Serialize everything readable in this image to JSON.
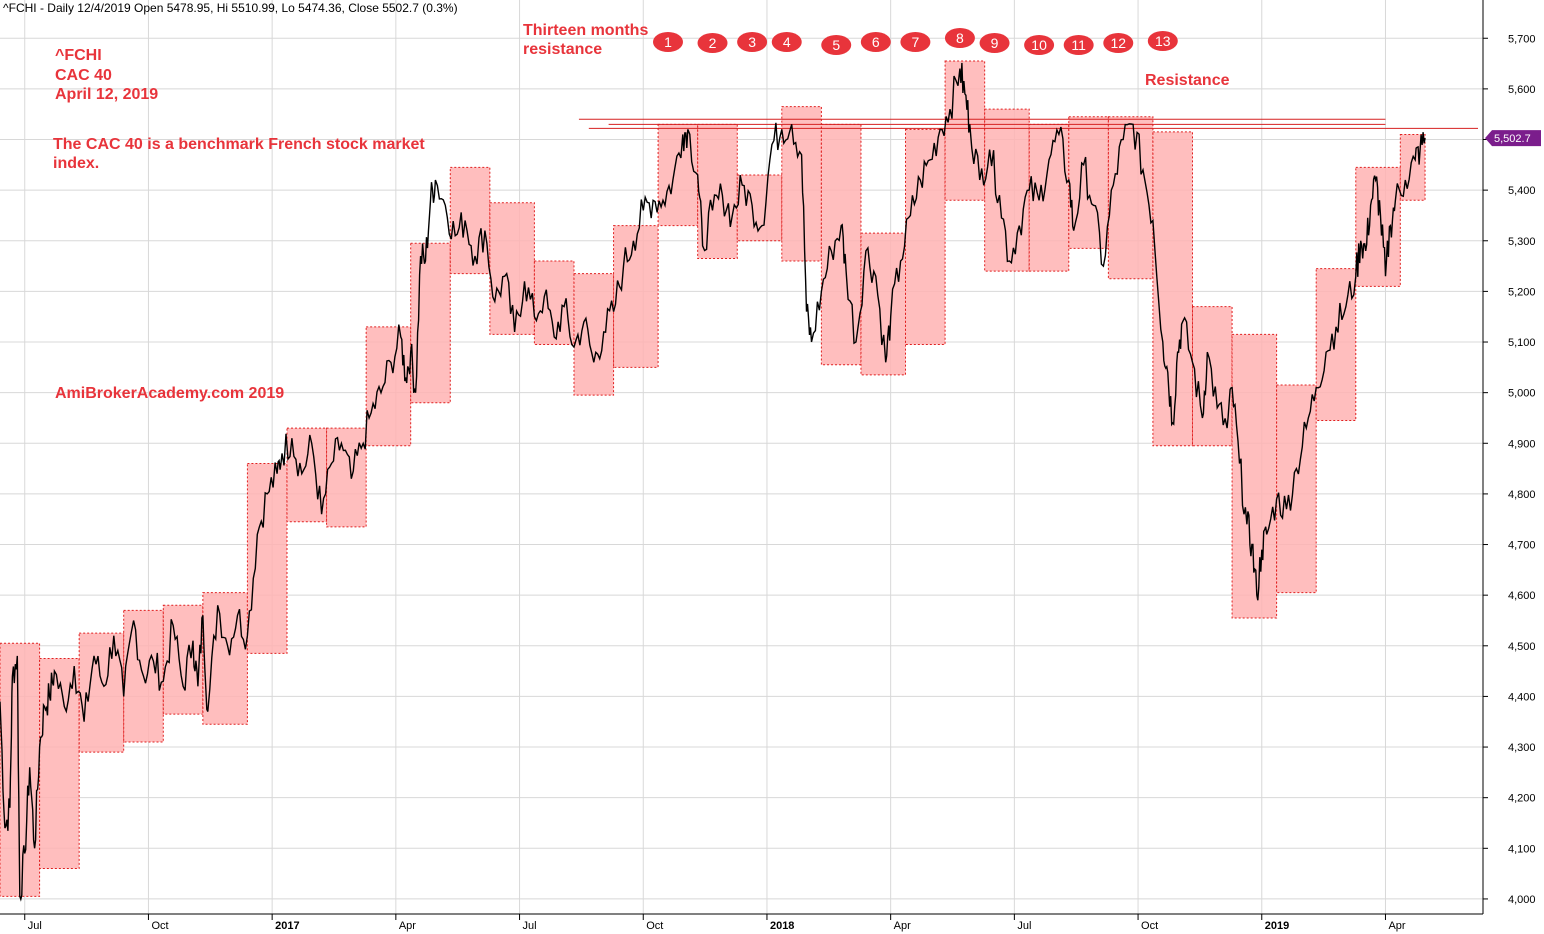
{
  "header": {
    "title_line": "^FCHI - Daily 12/4/2019 Open 5478.95, Hi 5510.99, Lo 5474.36, Close 5502.7 (0.3%)"
  },
  "annotations": {
    "symbol": "^FCHI",
    "index_name": "CAC 40",
    "date": "April 12, 2019",
    "description_line1": "The CAC 40  is a benchmark French stock market",
    "description_line2": "index.",
    "watermark": "AmiBrokerAcademy.com  2019",
    "months_label_line1": "Thirteen months",
    "months_label_line2": "resistance",
    "resistance_label": "Resistance"
  },
  "last_price_label": "5,502.7",
  "colors": {
    "accent_red": "#e8343b",
    "box_fill": "#ffb3b3",
    "box_border": "#e02020",
    "price_line": "#000000",
    "last_label_bg": "#7b1d8c",
    "grid": "#d8d8d8"
  },
  "chart_data": {
    "type": "line",
    "title": "^FCHI - Daily 12/4/2019 Open 5478.95, Hi 5510.99, Lo 5474.36, Close 5502.7 (0.3%)",
    "ylim": [
      3990,
      5740
    ],
    "yticks": [
      "4,000",
      "4,100",
      "4,200",
      "4,300",
      "4,400",
      "4,500",
      "4,600",
      "4,700",
      "4,800",
      "4,900",
      "5,000",
      "5,100",
      "5,200",
      "5,300",
      "5,400",
      "5,500",
      "5,600",
      "5,700"
    ],
    "ytick_values": [
      4000,
      4100,
      4200,
      4300,
      4400,
      4500,
      4600,
      4700,
      4800,
      4900,
      5000,
      5100,
      5200,
      5300,
      5400,
      5500,
      5600,
      5700
    ],
    "xlim": [
      2016.45,
      2019.33
    ],
    "xticks": [
      {
        "label": "Jul",
        "t": 2016.5,
        "bold": false
      },
      {
        "label": "Oct",
        "t": 2016.75,
        "bold": false
      },
      {
        "label": "2017",
        "t": 2017.0,
        "bold": true
      },
      {
        "label": "Apr",
        "t": 2017.25,
        "bold": false
      },
      {
        "label": "Jul",
        "t": 2017.5,
        "bold": false
      },
      {
        "label": "Oct",
        "t": 2017.75,
        "bold": false
      },
      {
        "label": "2018",
        "t": 2018.0,
        "bold": true
      },
      {
        "label": "Apr",
        "t": 2018.25,
        "bold": false
      },
      {
        "label": "Jul",
        "t": 2018.5,
        "bold": false
      },
      {
        "label": "Oct",
        "t": 2018.75,
        "bold": false
      },
      {
        "label": "2019",
        "t": 2019.0,
        "bold": true
      },
      {
        "label": "Apr",
        "t": 2019.25,
        "bold": false
      }
    ],
    "monthly_boxes": [
      {
        "t0": 2016.45,
        "t1": 2016.53,
        "low": 4005,
        "high": 4505
      },
      {
        "t0": 2016.53,
        "t1": 2016.61,
        "low": 4060,
        "high": 4475
      },
      {
        "t0": 2016.61,
        "t1": 2016.7,
        "low": 4290,
        "high": 4525
      },
      {
        "t0": 2016.7,
        "t1": 2016.78,
        "low": 4310,
        "high": 4570
      },
      {
        "t0": 2016.78,
        "t1": 2016.86,
        "low": 4365,
        "high": 4580
      },
      {
        "t0": 2016.86,
        "t1": 2016.95,
        "low": 4345,
        "high": 4605
      },
      {
        "t0": 2016.95,
        "t1": 2017.03,
        "low": 4485,
        "high": 4860
      },
      {
        "t0": 2017.03,
        "t1": 2017.11,
        "low": 4745,
        "high": 4930
      },
      {
        "t0": 2017.11,
        "t1": 2017.19,
        "low": 4735,
        "high": 4930
      },
      {
        "t0": 2017.19,
        "t1": 2017.28,
        "low": 4895,
        "high": 5130
      },
      {
        "t0": 2017.28,
        "t1": 2017.36,
        "low": 4980,
        "high": 5295
      },
      {
        "t0": 2017.36,
        "t1": 2017.44,
        "low": 5235,
        "high": 5445
      },
      {
        "t0": 2017.44,
        "t1": 2017.53,
        "low": 5115,
        "high": 5375
      },
      {
        "t0": 2017.53,
        "t1": 2017.61,
        "low": 5095,
        "high": 5260
      },
      {
        "t0": 2017.61,
        "t1": 2017.69,
        "low": 4995,
        "high": 5235
      },
      {
        "t0": 2017.69,
        "t1": 2017.78,
        "low": 5050,
        "high": 5330
      },
      {
        "t0": 2017.78,
        "t1": 2017.86,
        "low": 5330,
        "high": 5530
      },
      {
        "t0": 2017.86,
        "t1": 2017.94,
        "low": 5265,
        "high": 5530
      },
      {
        "t0": 2017.94,
        "t1": 2018.03,
        "low": 5300,
        "high": 5430
      },
      {
        "t0": 2018.03,
        "t1": 2018.11,
        "low": 5260,
        "high": 5565
      },
      {
        "t0": 2018.11,
        "t1": 2018.19,
        "low": 5055,
        "high": 5530
      },
      {
        "t0": 2018.19,
        "t1": 2018.28,
        "low": 5035,
        "high": 5315
      },
      {
        "t0": 2018.28,
        "t1": 2018.36,
        "low": 5095,
        "high": 5520
      },
      {
        "t0": 2018.36,
        "t1": 2018.44,
        "low": 5380,
        "high": 5655
      },
      {
        "t0": 2018.44,
        "t1": 2018.53,
        "low": 5240,
        "high": 5560
      },
      {
        "t0": 2018.53,
        "t1": 2018.61,
        "low": 5240,
        "high": 5530
      },
      {
        "t0": 2018.61,
        "t1": 2018.69,
        "low": 5285,
        "high": 5545
      },
      {
        "t0": 2018.69,
        "t1": 2018.78,
        "low": 5225,
        "high": 5545
      },
      {
        "t0": 2018.78,
        "t1": 2018.86,
        "low": 4895,
        "high": 5515
      },
      {
        "t0": 2018.86,
        "t1": 2018.94,
        "low": 4895,
        "high": 5170
      },
      {
        "t0": 2018.94,
        "t1": 2019.03,
        "low": 4555,
        "high": 5115
      },
      {
        "t0": 2019.03,
        "t1": 2019.11,
        "low": 4605,
        "high": 5015
      },
      {
        "t0": 2019.11,
        "t1": 2019.19,
        "low": 4945,
        "high": 5245
      },
      {
        "t0": 2019.19,
        "t1": 2019.28,
        "low": 5210,
        "high": 5445
      },
      {
        "t0": 2019.28,
        "t1": 2019.33,
        "low": 5380,
        "high": 5510
      }
    ],
    "price_path": [
      [
        2016.45,
        4390
      ],
      [
        2016.46,
        4140
      ],
      [
        2016.47,
        4180
      ],
      [
        2016.475,
        4440
      ],
      [
        2016.485,
        4480
      ],
      [
        2016.49,
        4005
      ],
      [
        2016.5,
        4090
      ],
      [
        2016.51,
        4260
      ],
      [
        2016.52,
        4100
      ],
      [
        2016.53,
        4300
      ],
      [
        2016.54,
        4380
      ],
      [
        2016.55,
        4400
      ],
      [
        2016.56,
        4450
      ],
      [
        2016.58,
        4380
      ],
      [
        2016.6,
        4460
      ],
      [
        2016.62,
        4350
      ],
      [
        2016.64,
        4480
      ],
      [
        2016.66,
        4420
      ],
      [
        2016.68,
        4520
      ],
      [
        2016.7,
        4400
      ],
      [
        2016.72,
        4550
      ],
      [
        2016.74,
        4440
      ],
      [
        2016.76,
        4470
      ],
      [
        2016.78,
        4430
      ],
      [
        2016.8,
        4540
      ],
      [
        2016.82,
        4420
      ],
      [
        2016.84,
        4510
      ],
      [
        2016.85,
        4420
      ],
      [
        2016.86,
        4560
      ],
      [
        2016.87,
        4370
      ],
      [
        2016.89,
        4580
      ],
      [
        2016.91,
        4500
      ],
      [
        2016.93,
        4560
      ],
      [
        2016.95,
        4520
      ],
      [
        2016.97,
        4720
      ],
      [
        2016.99,
        4800
      ],
      [
        2017.01,
        4840
      ],
      [
        2017.02,
        4880
      ],
      [
        2017.04,
        4910
      ],
      [
        2017.06,
        4840
      ],
      [
        2017.08,
        4900
      ],
      [
        2017.1,
        4760
      ],
      [
        2017.12,
        4860
      ],
      [
        2017.14,
        4900
      ],
      [
        2017.16,
        4830
      ],
      [
        2017.18,
        4890
      ],
      [
        2017.2,
        4960
      ],
      [
        2017.22,
        5000
      ],
      [
        2017.24,
        5060
      ],
      [
        2017.26,
        5110
      ],
      [
        2017.27,
        5030
      ],
      [
        2017.28,
        5080
      ],
      [
        2017.29,
        5000
      ],
      [
        2017.3,
        5270
      ],
      [
        2017.31,
        5260
      ],
      [
        2017.32,
        5380
      ],
      [
        2017.33,
        5420
      ],
      [
        2017.35,
        5370
      ],
      [
        2017.37,
        5310
      ],
      [
        2017.39,
        5340
      ],
      [
        2017.41,
        5270
      ],
      [
        2017.43,
        5320
      ],
      [
        2017.45,
        5180
      ],
      [
        2017.47,
        5230
      ],
      [
        2017.49,
        5120
      ],
      [
        2017.51,
        5220
      ],
      [
        2017.53,
        5150
      ],
      [
        2017.55,
        5190
      ],
      [
        2017.57,
        5110
      ],
      [
        2017.59,
        5170
      ],
      [
        2017.61,
        5090
      ],
      [
        2017.63,
        5140
      ],
      [
        2017.65,
        5060
      ],
      [
        2017.67,
        5120
      ],
      [
        2017.69,
        5160
      ],
      [
        2017.71,
        5250
      ],
      [
        2017.73,
        5300
      ],
      [
        2017.75,
        5360
      ],
      [
        2017.77,
        5380
      ],
      [
        2017.79,
        5380
      ],
      [
        2017.81,
        5420
      ],
      [
        2017.83,
        5510
      ],
      [
        2017.84,
        5520
      ],
      [
        2017.86,
        5430
      ],
      [
        2017.87,
        5290
      ],
      [
        2017.89,
        5360
      ],
      [
        2017.91,
        5390
      ],
      [
        2017.93,
        5350
      ],
      [
        2017.95,
        5410
      ],
      [
        2017.97,
        5370
      ],
      [
        2017.99,
        5330
      ],
      [
        2018.01,
        5490
      ],
      [
        2018.03,
        5520
      ],
      [
        2018.05,
        5530
      ],
      [
        2018.07,
        5470
      ],
      [
        2018.08,
        5160
      ],
      [
        2018.09,
        5100
      ],
      [
        2018.11,
        5200
      ],
      [
        2018.13,
        5280
      ],
      [
        2018.15,
        5330
      ],
      [
        2018.16,
        5240
      ],
      [
        2018.18,
        5100
      ],
      [
        2018.2,
        5280
      ],
      [
        2018.22,
        5230
      ],
      [
        2018.24,
        5060
      ],
      [
        2018.25,
        5150
      ],
      [
        2018.27,
        5260
      ],
      [
        2018.29,
        5350
      ],
      [
        2018.31,
        5420
      ],
      [
        2018.33,
        5460
      ],
      [
        2018.35,
        5520
      ],
      [
        2018.37,
        5560
      ],
      [
        2018.39,
        5640
      ],
      [
        2018.4,
        5590
      ],
      [
        2018.41,
        5530
      ],
      [
        2018.43,
        5420
      ],
      [
        2018.45,
        5480
      ],
      [
        2018.47,
        5390
      ],
      [
        2018.49,
        5260
      ],
      [
        2018.51,
        5330
      ],
      [
        2018.53,
        5400
      ],
      [
        2018.55,
        5380
      ],
      [
        2018.57,
        5460
      ],
      [
        2018.59,
        5510
      ],
      [
        2018.61,
        5420
      ],
      [
        2018.62,
        5320
      ],
      [
        2018.64,
        5450
      ],
      [
        2018.66,
        5370
      ],
      [
        2018.68,
        5250
      ],
      [
        2018.7,
        5410
      ],
      [
        2018.72,
        5500
      ],
      [
        2018.74,
        5530
      ],
      [
        2018.76,
        5440
      ],
      [
        2018.78,
        5340
      ],
      [
        2018.8,
        5100
      ],
      [
        2018.81,
        5040
      ],
      [
        2018.82,
        4940
      ],
      [
        2018.83,
        5080
      ],
      [
        2018.84,
        5140
      ],
      [
        2018.86,
        5060
      ],
      [
        2018.88,
        4950
      ],
      [
        2018.89,
        5080
      ],
      [
        2018.91,
        4970
      ],
      [
        2018.93,
        4930
      ],
      [
        2018.94,
        5010
      ],
      [
        2018.955,
        4860
      ],
      [
        2018.97,
        4740
      ],
      [
        2018.98,
        4700
      ],
      [
        2018.99,
        4600
      ],
      [
        2019.0,
        4690
      ],
      [
        2019.01,
        4720
      ],
      [
        2019.03,
        4790
      ],
      [
        2019.05,
        4770
      ],
      [
        2019.07,
        4850
      ],
      [
        2019.09,
        4930
      ],
      [
        2019.11,
        5010
      ],
      [
        2019.13,
        5080
      ],
      [
        2019.15,
        5130
      ],
      [
        2019.17,
        5170
      ],
      [
        2019.19,
        5230
      ],
      [
        2019.2,
        5300
      ],
      [
        2019.21,
        5280
      ],
      [
        2019.22,
        5370
      ],
      [
        2019.23,
        5420
      ],
      [
        2019.24,
        5350
      ],
      [
        2019.25,
        5230
      ],
      [
        2019.26,
        5330
      ],
      [
        2019.27,
        5380
      ],
      [
        2019.29,
        5420
      ],
      [
        2019.31,
        5460
      ],
      [
        2019.32,
        5480
      ],
      [
        2019.33,
        5502.7
      ]
    ],
    "resistance_lines": [
      {
        "t0": 2017.62,
        "t1": 2019.25,
        "y": 5540
      },
      {
        "t0": 2017.68,
        "t1": 2019.25,
        "y": 5530
      },
      {
        "t0": 2017.64,
        "t1": 2019.48,
        "y": 5522
      }
    ],
    "numbered_bubbles": [
      {
        "label": "1",
        "t": 2017.8,
        "y_offset": 42
      },
      {
        "label": "2",
        "t": 2017.89,
        "y_offset": 43
      },
      {
        "label": "3",
        "t": 2017.97,
        "y_offset": 42
      },
      {
        "label": "4",
        "t": 2018.04,
        "y_offset": 42
      },
      {
        "label": "5",
        "t": 2018.14,
        "y_offset": 45
      },
      {
        "label": "6",
        "t": 2018.22,
        "y_offset": 42
      },
      {
        "label": "7",
        "t": 2018.3,
        "y_offset": 42
      },
      {
        "label": "8",
        "t": 2018.39,
        "y_offset": 38
      },
      {
        "label": "9",
        "t": 2018.46,
        "y_offset": 43
      },
      {
        "label": "10",
        "t": 2018.55,
        "y_offset": 45
      },
      {
        "label": "11",
        "t": 2018.63,
        "y_offset": 45
      },
      {
        "label": "12",
        "t": 2018.71,
        "y_offset": 43
      },
      {
        "label": "13",
        "t": 2018.8,
        "y_offset": 41
      }
    ],
    "last_value": 5502.7,
    "grid": true
  }
}
